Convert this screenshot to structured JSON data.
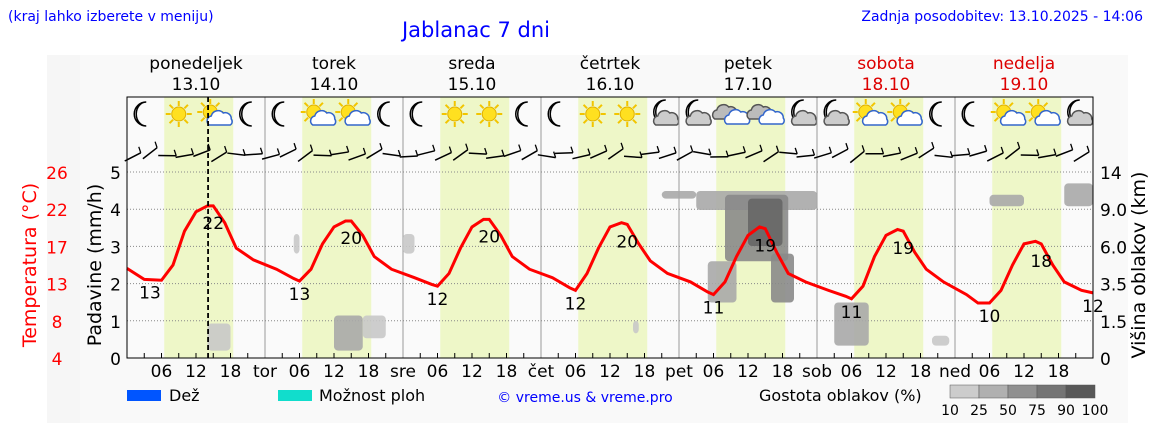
{
  "header": {
    "hint": "(kraj lahko izberete v meniju)",
    "title": "Jablanac 7 dni",
    "updated": "Zadnja posodobitev: 13.10.2025 - 14:06"
  },
  "colors": {
    "temp": "#ff0000",
    "day_band": "#eef7c8",
    "title": "#0000ff",
    "weekend": "#dd0000"
  },
  "chart_data": {
    "type": "line",
    "title": "Jablanac 7 dni",
    "days": [
      {
        "name": "ponedeljek",
        "date": "13.10",
        "short": "",
        "weekend": false,
        "icons": [
          "moon",
          "sun",
          "sun-cloud",
          "moon"
        ]
      },
      {
        "name": "torek",
        "date": "14.10",
        "short": "tor",
        "weekend": false,
        "icons": [
          "moon",
          "sun-cloud",
          "sun-cloud",
          "moon"
        ]
      },
      {
        "name": "sreda",
        "date": "15.10",
        "short": "sre",
        "weekend": false,
        "icons": [
          "moon",
          "sun",
          "sun",
          "moon"
        ]
      },
      {
        "name": "četrtek",
        "date": "16.10",
        "short": "čet",
        "weekend": false,
        "icons": [
          "moon",
          "sun",
          "sun",
          "moon-cloud"
        ]
      },
      {
        "name": "petek",
        "date": "17.10",
        "short": "pet",
        "weekend": false,
        "icons": [
          "moon-cloud",
          "cloud",
          "cloud",
          "moon-cloud"
        ]
      },
      {
        "name": "sobota",
        "date": "18.10",
        "short": "sob",
        "weekend": true,
        "icons": [
          "moon-cloud",
          "sun-cloud",
          "sun-cloud",
          "moon"
        ]
      },
      {
        "name": "nedelja",
        "date": "19.10",
        "short": "ned",
        "weekend": true,
        "icons": [
          "moon",
          "sun-cloud",
          "sun-cloud",
          "moon-cloud"
        ]
      }
    ],
    "hour_ticks": [
      "06",
      "12",
      "18"
    ],
    "now_hour": 14.1,
    "y_left_precip": {
      "label": "Padavine (mm/h)",
      "ticks": [
        "0",
        "1",
        "2",
        "3",
        "4",
        "5"
      ],
      "range": [
        0,
        5
      ]
    },
    "y_left_temp": {
      "label": "Temperatura (°C)",
      "ticks": [
        "4",
        "8",
        "13",
        "17",
        "22",
        "26"
      ],
      "range": [
        4,
        26
      ]
    },
    "y_right_cloud": {
      "label": "Višina oblakov (km)",
      "ticks": [
        "0",
        "1.5",
        "3.5",
        "6.0",
        "9.0",
        "14"
      ]
    },
    "temperature": [
      [
        0,
        14.6
      ],
      [
        3,
        13.3
      ],
      [
        6,
        13.2
      ],
      [
        8,
        15
      ],
      [
        10,
        19
      ],
      [
        12,
        21.3
      ],
      [
        14,
        22
      ],
      [
        15,
        22
      ],
      [
        17,
        20
      ],
      [
        19,
        17
      ],
      [
        22,
        15.6
      ],
      [
        26,
        14.5
      ],
      [
        29,
        13.4
      ],
      [
        30,
        13.1
      ],
      [
        32,
        14.5
      ],
      [
        34,
        17.5
      ],
      [
        36,
        19.5
      ],
      [
        38,
        20.2
      ],
      [
        39,
        20.2
      ],
      [
        41,
        18.5
      ],
      [
        43,
        16
      ],
      [
        46,
        14.5
      ],
      [
        50,
        13.5
      ],
      [
        53,
        12.7
      ],
      [
        54,
        12.5
      ],
      [
        56,
        14
      ],
      [
        58,
        17
      ],
      [
        60,
        19.5
      ],
      [
        62,
        20.4
      ],
      [
        63,
        20.4
      ],
      [
        65,
        18.5
      ],
      [
        67,
        16
      ],
      [
        70,
        14.5
      ],
      [
        74,
        13.5
      ],
      [
        77,
        12.3
      ],
      [
        78,
        12
      ],
      [
        80,
        14
      ],
      [
        82,
        17
      ],
      [
        84,
        19.5
      ],
      [
        86,
        20
      ],
      [
        87,
        19.8
      ],
      [
        89,
        17.5
      ],
      [
        91,
        15.5
      ],
      [
        94,
        14
      ],
      [
        98,
        13
      ],
      [
        101,
        11.8
      ],
      [
        102,
        11.5
      ],
      [
        104,
        13
      ],
      [
        106,
        16
      ],
      [
        108,
        18.5
      ],
      [
        110,
        19.5
      ],
      [
        111,
        19.3
      ],
      [
        113,
        16.5
      ],
      [
        115,
        14
      ],
      [
        118,
        13
      ],
      [
        122,
        12
      ],
      [
        125,
        11.3
      ],
      [
        126,
        11
      ],
      [
        128,
        12.5
      ],
      [
        130,
        16
      ],
      [
        132,
        18.5
      ],
      [
        134,
        19.2
      ],
      [
        135,
        19
      ],
      [
        137,
        16.5
      ],
      [
        139,
        14.5
      ],
      [
        142,
        13
      ],
      [
        146,
        11.5
      ],
      [
        148,
        10.5
      ],
      [
        150,
        10.5
      ],
      [
        152,
        12
      ],
      [
        154,
        15
      ],
      [
        156,
        17.5
      ],
      [
        158,
        17.8
      ],
      [
        159,
        17.5
      ],
      [
        161,
        15
      ],
      [
        163,
        13
      ],
      [
        166,
        12
      ],
      [
        168,
        11.7
      ]
    ],
    "temp_labels": [
      {
        "hour": 4,
        "text": "13",
        "pos": "below"
      },
      {
        "hour": 15,
        "text": "22",
        "pos": "below"
      },
      {
        "hour": 30,
        "text": "13",
        "pos": "below"
      },
      {
        "hour": 39,
        "text": "20",
        "pos": "below"
      },
      {
        "hour": 54,
        "text": "12",
        "pos": "below"
      },
      {
        "hour": 63,
        "text": "20",
        "pos": "below"
      },
      {
        "hour": 78,
        "text": "12",
        "pos": "below"
      },
      {
        "hour": 87,
        "text": "20",
        "pos": "below"
      },
      {
        "hour": 102,
        "text": "11",
        "pos": "below"
      },
      {
        "hour": 111,
        "text": "19",
        "pos": "below"
      },
      {
        "hour": 126,
        "text": "11",
        "pos": "below"
      },
      {
        "hour": 135,
        "text": "19",
        "pos": "below"
      },
      {
        "hour": 150,
        "text": "10",
        "pos": "below"
      },
      {
        "hour": 159,
        "text": "18",
        "pos": "below"
      },
      {
        "hour": 168,
        "text": "12",
        "pos": "below"
      }
    ],
    "clouds": [
      {
        "h0": 14,
        "h1": 18,
        "km0": 0.3,
        "km1": 1.4,
        "density": 25
      },
      {
        "h0": 29,
        "h1": 30,
        "km0": 5.5,
        "km1": 7.0,
        "density": 25
      },
      {
        "h0": 36,
        "h1": 41,
        "km0": 0.3,
        "km1": 1.8,
        "density": 50
      },
      {
        "h0": 41,
        "h1": 45,
        "km0": 0.8,
        "km1": 1.8,
        "density": 25
      },
      {
        "h0": 48,
        "h1": 50,
        "km0": 5.5,
        "km1": 7.0,
        "density": 25
      },
      {
        "h0": 88,
        "h1": 89,
        "km0": 1.0,
        "km1": 1.5,
        "density": 25
      },
      {
        "h0": 93,
        "h1": 99,
        "km0": 10.5,
        "km1": 11.5,
        "density": 50
      },
      {
        "h0": 99,
        "h1": 120,
        "km0": 9.0,
        "km1": 11.5,
        "density": 50
      },
      {
        "h0": 104,
        "h1": 115,
        "km0": 5.0,
        "km1": 11.0,
        "density": 75
      },
      {
        "h0": 108,
        "h1": 114,
        "km0": 6.0,
        "km1": 10.5,
        "density": 90
      },
      {
        "h0": 101,
        "h1": 106,
        "km0": 2.5,
        "km1": 5.0,
        "density": 50
      },
      {
        "h0": 112,
        "h1": 116,
        "km0": 2.5,
        "km1": 5.5,
        "density": 75
      },
      {
        "h0": 123,
        "h1": 129,
        "km0": 0.5,
        "km1": 2.5,
        "density": 50
      },
      {
        "h0": 140,
        "h1": 143,
        "km0": 0.5,
        "km1": 0.9,
        "density": 25
      },
      {
        "h0": 150,
        "h1": 156,
        "km0": 9.5,
        "km1": 11.0,
        "density": 50
      },
      {
        "h0": 163,
        "h1": 168,
        "km0": 9.5,
        "km1": 12.5,
        "density": 50
      }
    ]
  },
  "legend": {
    "rain": "Dež",
    "storm": "Možnost ploh",
    "credit": "© vreme.us & vreme.pro",
    "cloud_density": "Gostota oblakov (%)",
    "density_ticks": [
      "10",
      "25",
      "50",
      "75",
      "90",
      "100"
    ],
    "rain_color": "#0055ff",
    "storm_color": "#11ddcc"
  }
}
